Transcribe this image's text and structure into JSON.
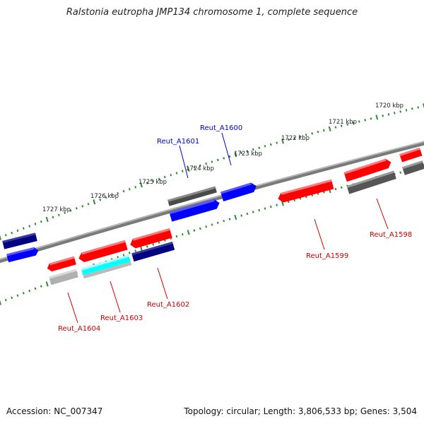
{
  "title": "Ralstonia eutropha JMP134 chromosome 1, complete sequence",
  "accession_text": "Accession: NC_007347",
  "summary_text": "Topology: circular; Length: 3,806,533 bp; Genes: 3,504",
  "colors": {
    "backbone": "#8a8a8a",
    "ticks": "#2e8b2e",
    "red_gene": "#ff0000",
    "blue_gene": "#0000ff",
    "navy_gene": "#000080",
    "dark_gray_gene": "#555555",
    "light_gray_gene": "#b0b0b0",
    "cyan_gene": "#00ffff",
    "forward_label": "#0000cc",
    "reverse_label": "#cc0000"
  },
  "scale_labels": [
    "1720 kbp",
    "1721 kbp",
    "1722 kbp",
    "1723 kbp",
    "1724 kbp",
    "1725 kbp",
    "1726 kbp",
    "1727 kbp"
  ],
  "gene_labels": [
    {
      "name": "Reut_A1600",
      "strand": "forward"
    },
    {
      "name": "Reut_A1601",
      "strand": "forward"
    },
    {
      "name": "Reut_A1598",
      "strand": "reverse"
    },
    {
      "name": "Reut_A1599",
      "strand": "reverse"
    },
    {
      "name": "Reut_A1602",
      "strand": "reverse"
    },
    {
      "name": "Reut_A1603",
      "strand": "reverse"
    },
    {
      "name": "Reut_A1604",
      "strand": "reverse"
    }
  ]
}
